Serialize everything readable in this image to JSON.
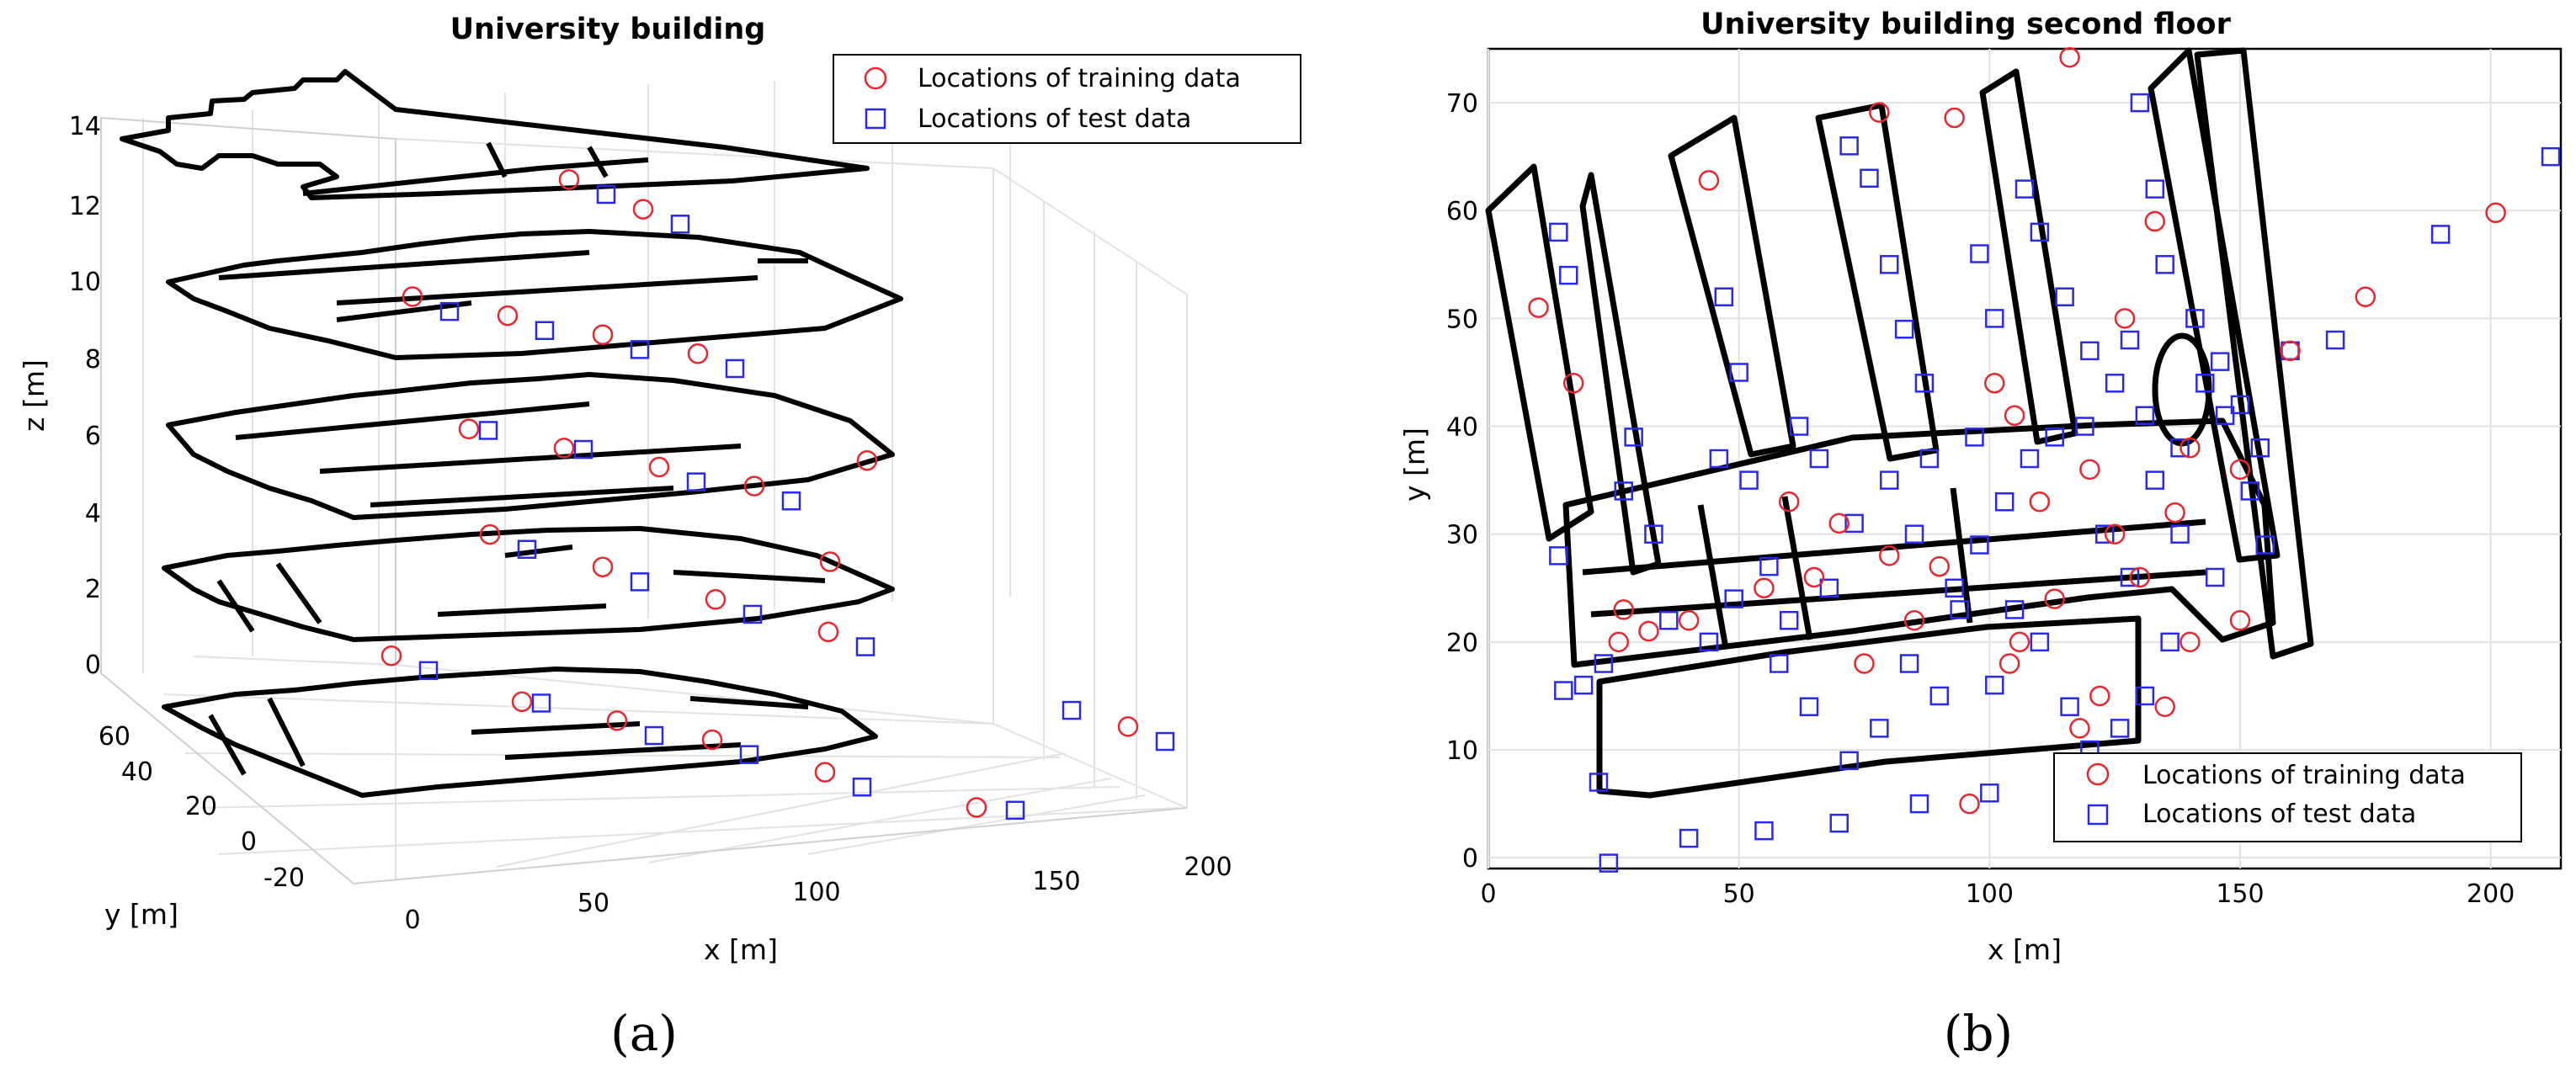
{
  "figure": {
    "panel_labels": [
      "(a)",
      "(b)"
    ]
  },
  "colors": {
    "training_marker": "#e8262d",
    "test_marker": "#2a2ae6",
    "floorplan": "#000000",
    "grid": "#e3e3e3"
  },
  "icons": {
    "training_marker": "red-circle-marker-icon",
    "test_marker": "blue-square-marker-icon"
  },
  "chart_data": [
    {
      "type": "scatter",
      "variant": "3d-scatter",
      "title": "University building",
      "xlabel": "x [m]",
      "ylabel": "y [m]",
      "zlabel": "z [m]",
      "xlim": [
        0,
        210
      ],
      "ylim": [
        -30,
        75
      ],
      "zlim": [
        0,
        15
      ],
      "x_ticks": [
        "0",
        "50",
        "100",
        "150",
        "200"
      ],
      "y_ticks": [
        "-20",
        "0",
        "20",
        "40",
        "60"
      ],
      "z_ticks": [
        "0",
        "2",
        "4",
        "6",
        "8",
        "10",
        "12",
        "14"
      ],
      "grid": true,
      "legend_position": "top-right",
      "floor_levels_z": [
        0,
        3,
        6,
        9,
        12
      ],
      "series": [
        {
          "name": "Locations of training data",
          "marker": "circle",
          "sample_points": [
            [
              40,
              45,
              0
            ],
            [
              60,
              30,
              0
            ],
            [
              80,
              25,
              0
            ],
            [
              100,
              20,
              0
            ],
            [
              120,
              10,
              0
            ],
            [
              150,
              0,
              0
            ],
            [
              70,
              50,
              3
            ],
            [
              90,
              40,
              3
            ],
            [
              110,
              30,
              3
            ],
            [
              130,
              20,
              3
            ],
            [
              60,
              45,
              6
            ],
            [
              80,
              40,
              6
            ],
            [
              100,
              35,
              6
            ],
            [
              120,
              30,
              6
            ],
            [
              50,
              50,
              9
            ],
            [
              70,
              45,
              9
            ],
            [
              90,
              40,
              9
            ],
            [
              110,
              35,
              9
            ],
            [
              95,
              55,
              12
            ],
            [
              105,
              45,
              12
            ],
            [
              180,
              -10,
              3
            ],
            [
              135,
              25,
              4.5
            ],
            [
              140,
              20,
              7.5
            ]
          ]
        },
        {
          "name": "Locations of test data",
          "marker": "square",
          "sample_points": [
            [
              45,
              40,
              0
            ],
            [
              65,
              30,
              0
            ],
            [
              85,
              20,
              0
            ],
            [
              105,
              15,
              0
            ],
            [
              125,
              5,
              0
            ],
            [
              160,
              0,
              0
            ],
            [
              75,
              45,
              3
            ],
            [
              95,
              35,
              3
            ],
            [
              115,
              25,
              3
            ],
            [
              135,
              15,
              3
            ],
            [
              65,
              45,
              6
            ],
            [
              85,
              40,
              6
            ],
            [
              105,
              30,
              6
            ],
            [
              125,
              25,
              6
            ],
            [
              55,
              45,
              9
            ],
            [
              75,
              40,
              9
            ],
            [
              95,
              35,
              9
            ],
            [
              115,
              30,
              9
            ],
            [
              100,
              50,
              12
            ],
            [
              110,
              40,
              12
            ],
            [
              170,
              -5,
              3
            ],
            [
              185,
              -15,
              3
            ]
          ]
        }
      ]
    },
    {
      "type": "scatter",
      "title": "University building second floor",
      "xlabel": "x [m]",
      "ylabel": "y [m]",
      "xlim": [
        0,
        214
      ],
      "ylim": [
        -1,
        75
      ],
      "x_ticks": [
        0,
        50,
        100,
        150,
        200
      ],
      "y_ticks": [
        0,
        10,
        20,
        30,
        40,
        50,
        60,
        70
      ],
      "grid": true,
      "legend_position": "bottom-right",
      "series": [
        {
          "name": "Locations of training data",
          "marker": "circle",
          "points": [
            [
              44,
              62.8
            ],
            [
              78,
              69.1
            ],
            [
              93,
              68.6
            ],
            [
              116,
              74.2
            ],
            [
              201,
              59.8
            ],
            [
              10,
              51
            ],
            [
              17,
              44
            ],
            [
              101,
              44
            ],
            [
              105,
              41
            ],
            [
              127,
              50
            ],
            [
              133,
              59
            ],
            [
              140,
              38
            ],
            [
              150,
              36
            ],
            [
              160,
              47
            ],
            [
              175,
              52
            ],
            [
              150,
              22
            ],
            [
              135,
              14
            ],
            [
              26,
              20
            ],
            [
              96,
              5
            ],
            [
              60,
              33
            ],
            [
              65,
              26
            ],
            [
              80,
              28
            ],
            [
              90,
              27
            ],
            [
              110,
              33
            ],
            [
              120,
              36
            ],
            [
              125,
              30
            ],
            [
              130,
              26
            ],
            [
              137,
              32
            ],
            [
              140,
              20
            ],
            [
              106,
              20
            ],
            [
              113,
              24
            ],
            [
              118,
              12
            ],
            [
              122,
              15
            ],
            [
              104,
              18
            ],
            [
              75,
              18
            ],
            [
              85,
              22
            ],
            [
              70,
              31
            ],
            [
              32,
              21
            ],
            [
              40,
              22
            ],
            [
              55,
              25
            ],
            [
              27,
              23
            ]
          ]
        },
        {
          "name": "Locations of test data",
          "marker": "square",
          "points": [
            [
              24,
              -0.5
            ],
            [
              40,
              1.8
            ],
            [
              55,
              2.5
            ],
            [
              70,
              3.2
            ],
            [
              86,
              5
            ],
            [
              100,
              6
            ],
            [
              190,
              57.8
            ],
            [
              212,
              65
            ],
            [
              160,
              47
            ],
            [
              169,
              48
            ],
            [
              14,
              58
            ],
            [
              16,
              54
            ],
            [
              14,
              28
            ],
            [
              15,
              15.5
            ],
            [
              19,
              16
            ],
            [
              22,
              7
            ],
            [
              23,
              18
            ],
            [
              36,
              22
            ],
            [
              44,
              20
            ],
            [
              49,
              24
            ],
            [
              56,
              27
            ],
            [
              60,
              22
            ],
            [
              68,
              25
            ],
            [
              73,
              31
            ],
            [
              80,
              35
            ],
            [
              85,
              30
            ],
            [
              93,
              25
            ],
            [
              98,
              29
            ],
            [
              103,
              33
            ],
            [
              108,
              37
            ],
            [
              113,
              39
            ],
            [
              119,
              40
            ],
            [
              123,
              30
            ],
            [
              128,
              26
            ],
            [
              133,
              35
            ],
            [
              138,
              38
            ],
            [
              143,
              44
            ],
            [
              147,
              41
            ],
            [
              152,
              34
            ],
            [
              155,
              29
            ],
            [
              145,
              26
            ],
            [
              110,
              20
            ],
            [
              116,
              14
            ],
            [
              120,
              10
            ],
            [
              126,
              12
            ],
            [
              131,
              15
            ],
            [
              136,
              20
            ],
            [
              90,
              15
            ],
            [
              84,
              18
            ],
            [
              78,
              12
            ],
            [
              72,
              9
            ],
            [
              64,
              14
            ],
            [
              58,
              18
            ],
            [
              107,
              62
            ],
            [
              110,
              58
            ],
            [
              115,
              52
            ],
            [
              120,
              47
            ],
            [
              76,
              63
            ],
            [
              80,
              55
            ],
            [
              83,
              49
            ],
            [
              87,
              44
            ],
            [
              72,
              66
            ],
            [
              130,
              70
            ],
            [
              133,
              62
            ],
            [
              135,
              55
            ],
            [
              141,
              50
            ],
            [
              146,
              46
            ],
            [
              150,
              42
            ],
            [
              154,
              38
            ],
            [
              101,
              16
            ],
            [
              105,
              23
            ],
            [
              94,
              23
            ],
            [
              88,
              37
            ],
            [
              97,
              39
            ],
            [
              46,
              37
            ],
            [
              52,
              35
            ],
            [
              33,
              30
            ],
            [
              27,
              34
            ],
            [
              29,
              39
            ],
            [
              47,
              52
            ],
            [
              50,
              45
            ],
            [
              98,
              56
            ],
            [
              101,
              50
            ],
            [
              125,
              44
            ],
            [
              128,
              48
            ],
            [
              131,
              41
            ],
            [
              62,
              40
            ],
            [
              66,
              37
            ],
            [
              138,
              30
            ]
          ]
        }
      ]
    }
  ]
}
